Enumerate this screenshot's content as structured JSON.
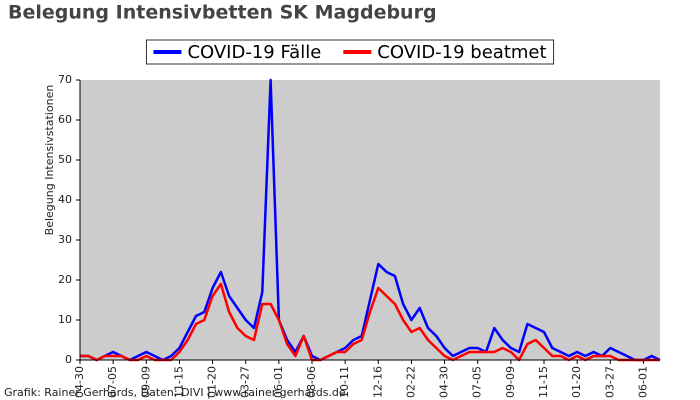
{
  "chart_data": {
    "type": "line",
    "title": "Belegung Intensivbetten SK Magdeburg",
    "y_label": "Belegung Intensivstationen",
    "footer": "Grafik: Rainer Gerhards, Daten: DIVI | www.rainer-gerhards.de",
    "legend": "top",
    "background": "#cccccc",
    "categories": [
      "04-30",
      null,
      null,
      null,
      "07-05",
      null,
      null,
      null,
      "09-09",
      null,
      null,
      null,
      "11-15",
      null,
      null,
      null,
      "01-20",
      null,
      null,
      null,
      "03-27",
      null,
      null,
      null,
      "06-01",
      null,
      null,
      null,
      "08-06",
      null,
      null,
      null,
      "10-11",
      null,
      null,
      null,
      "12-16",
      null,
      null,
      null,
      "02-22",
      null,
      null,
      null,
      "04-30",
      null,
      null,
      null,
      "07-05",
      null,
      null,
      null,
      "09-09",
      null,
      null,
      null,
      "11-15",
      null,
      null,
      null,
      "01-20",
      null,
      null,
      null,
      "03-27",
      null,
      null,
      null,
      "06-01",
      null,
      null
    ],
    "series": [
      {
        "name": "COVID-19 Fälle",
        "color": "#0000ff",
        "values": [
          1,
          1,
          0,
          1,
          2,
          1,
          0,
          1,
          2,
          1,
          0,
          1,
          3,
          7,
          11,
          12,
          18,
          22,
          16,
          13,
          10,
          8,
          17,
          70,
          10,
          5,
          2,
          6,
          1,
          0,
          1,
          2,
          3,
          5,
          6,
          15,
          24,
          22,
          21,
          14,
          10,
          13,
          8,
          6,
          3,
          1,
          2,
          3,
          3,
          2,
          8,
          5,
          3,
          2,
          9,
          8,
          7,
          3,
          2,
          1,
          2,
          1,
          2,
          1,
          3,
          2,
          1,
          0,
          0,
          1,
          0
        ]
      },
      {
        "name": "COVID-19 beatmet",
        "color": "#ff0000",
        "values": [
          1,
          1,
          0,
          1,
          1,
          1,
          0,
          0,
          1,
          0,
          0,
          0,
          2,
          5,
          9,
          10,
          16,
          19,
          12,
          8,
          6,
          5,
          14,
          14,
          10,
          4,
          1,
          6,
          0,
          0,
          1,
          2,
          2,
          4,
          5,
          12,
          18,
          16,
          14,
          10,
          7,
          8,
          5,
          3,
          1,
          0,
          1,
          2,
          2,
          2,
          2,
          3,
          2,
          0,
          4,
          5,
          3,
          1,
          1,
          0,
          1,
          0,
          1,
          1,
          1,
          0,
          0,
          0,
          0,
          0,
          0
        ]
      }
    ],
    "ylim": [
      0,
      70
    ],
    "yticks": [
      0,
      10,
      20,
      30,
      40,
      50,
      60,
      70
    ]
  }
}
